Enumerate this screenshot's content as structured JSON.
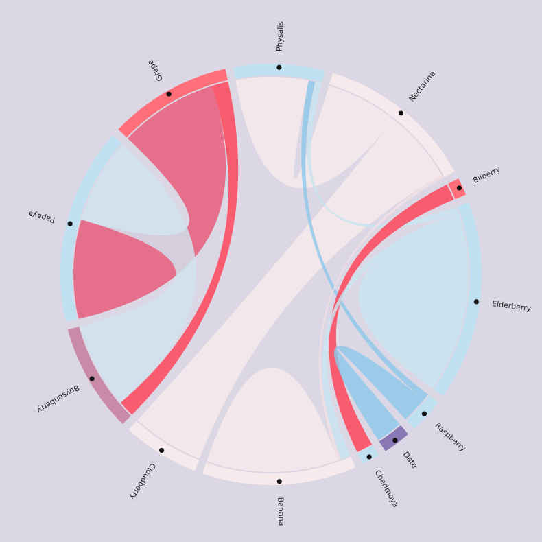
{
  "chart_data": {
    "type": "chord",
    "title": "",
    "groups": [
      {
        "name": "Papaya",
        "color": "#bfe0f0"
      },
      {
        "name": "Grape",
        "color": "#ff6f7a"
      },
      {
        "name": "Physalis",
        "color": "#bfe0f0"
      },
      {
        "name": "Nectarine",
        "color": "#f6eaec"
      },
      {
        "name": "Bilberry",
        "color": "#ff6f7a"
      },
      {
        "name": "Elderberry",
        "color": "#bfe0f0"
      },
      {
        "name": "Raspberry",
        "color": "#bfe0f0"
      },
      {
        "name": "Date",
        "color": "#8a78b4"
      },
      {
        "name": "Cherimoya",
        "color": "#bfe0f0"
      },
      {
        "name": "Banana",
        "color": "#f6eaec"
      },
      {
        "name": "Cloudberry",
        "color": "#f6eaec"
      },
      {
        "name": "Boysenberry",
        "color": "#c98aa8"
      }
    ],
    "chords": [
      {
        "source": "Papaya",
        "target": "Grape",
        "value": 30,
        "color": "#e85878"
      },
      {
        "source": "Grape",
        "target": "Boysenberry",
        "value": 5,
        "color": "#ff3f55"
      },
      {
        "source": "Physalis",
        "target": "Nectarine",
        "value": 22,
        "color": "#f6eaec"
      },
      {
        "source": "Papaya",
        "target": "Boysenberry",
        "value": 26,
        "color": "#cfe3ef"
      },
      {
        "source": "Nectarine",
        "target": "Cloudberry",
        "value": 22,
        "color": "#f6eaec"
      },
      {
        "source": "Physalis",
        "target": "Raspberry",
        "value": 2,
        "color": "#8ec8ea"
      },
      {
        "source": "Physalis",
        "target": "Elderberry",
        "value": 2,
        "color": "#c8e4f2"
      },
      {
        "source": "Bilberry",
        "target": "Cherimoya",
        "value": 5,
        "color": "#ff3f55"
      },
      {
        "source": "Elderberry",
        "target": "Banana",
        "value": 3,
        "color": "#c8e4f2"
      },
      {
        "source": "Nectarine",
        "target": "Banana",
        "value": 1,
        "color": "#f3dfe4"
      },
      {
        "source": "Banana",
        "target": "Banana",
        "value": 20,
        "color": "#f6eaec"
      },
      {
        "source": "Elderberry",
        "target": "Elderberry",
        "value": 26,
        "color": "#c8e4f2"
      },
      {
        "source": "Date",
        "target": "Raspberry",
        "value": 8,
        "color": "#8ec8ea"
      }
    ]
  }
}
